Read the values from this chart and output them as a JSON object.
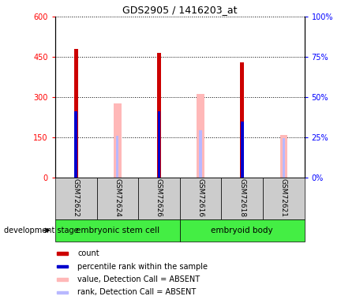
{
  "title": "GDS2905 / 1416203_at",
  "samples": [
    "GSM72622",
    "GSM72624",
    "GSM72626",
    "GSM72616",
    "GSM72618",
    "GSM72621"
  ],
  "ylim_left": [
    0,
    600
  ],
  "ylim_right": [
    0,
    100
  ],
  "yticks_left": [
    0,
    150,
    300,
    450,
    600
  ],
  "yticks_right": [
    0,
    25,
    50,
    75,
    100
  ],
  "count_values": [
    480,
    0,
    465,
    0,
    430,
    0
  ],
  "percentile_values": [
    247,
    0,
    247,
    0,
    207,
    0
  ],
  "absent_value_values": [
    0,
    275,
    0,
    310,
    0,
    160
  ],
  "absent_rank_values": [
    0,
    155,
    0,
    175,
    0,
    148
  ],
  "colors": {
    "count": "#cc0000",
    "percentile": "#0000cc",
    "absent_value": "#ffb8b8",
    "absent_rank": "#b8b8ff",
    "group_green": "#44ee44",
    "tick_bg": "#cccccc",
    "plot_bg": "#ffffff"
  },
  "group1_label": "embryonic stem cell",
  "group2_label": "embryoid body",
  "group_label": "development stage",
  "legend_items": [
    {
      "label": "count",
      "color": "#cc0000"
    },
    {
      "label": "percentile rank within the sample",
      "color": "#0000cc"
    },
    {
      "label": "value, Detection Call = ABSENT",
      "color": "#ffb8b8"
    },
    {
      "label": "rank, Detection Call = ABSENT",
      "color": "#b8b8ff"
    }
  ]
}
